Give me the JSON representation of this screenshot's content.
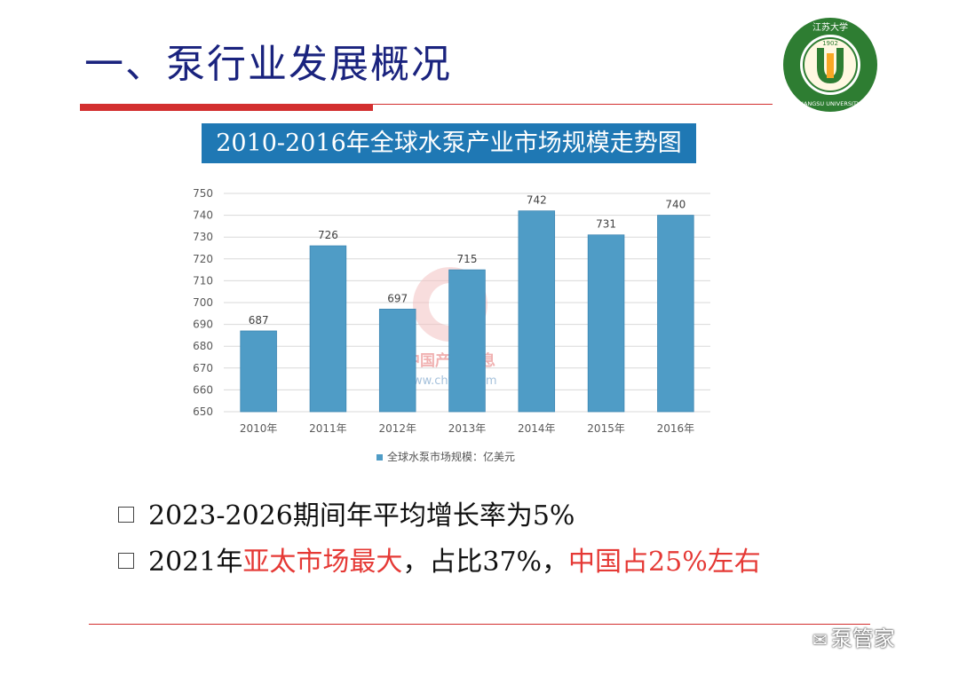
{
  "slide": {
    "title": "一、泵行业发展概况"
  },
  "logo": {
    "year": "1902",
    "top_text": "江苏大学",
    "bottom_text": "JIANGSU UNIVERSITY",
    "letter": "J",
    "colors": {
      "green": "#2e7d32",
      "gold": "#f9a825",
      "red": "#c62828"
    }
  },
  "chart_data": {
    "type": "bar",
    "title": "2010-2016年全球水泵产业市场规模走势图",
    "categories": [
      "2010年",
      "2011年",
      "2012年",
      "2013年",
      "2014年",
      "2015年",
      "2016年"
    ],
    "series": [
      {
        "name": "全球水泵市场规模：亿美元",
        "values": [
          687,
          726,
          697,
          715,
          742,
          731,
          740
        ]
      }
    ],
    "ylim": [
      650,
      750
    ],
    "yticks": [
      650,
      660,
      670,
      680,
      690,
      700,
      710,
      720,
      730,
      740,
      750
    ],
    "grid": true,
    "legend_position": "bottom",
    "bar_color": "#4f9cc6",
    "source_watermark": {
      "name": "中国产业信息",
      "url": "www.chyxx.com"
    }
  },
  "bullets": [
    {
      "parts": [
        {
          "text": "2023-2026期间年平均增长率为5%",
          "red": false
        }
      ]
    },
    {
      "parts": [
        {
          "text": "2021年",
          "red": false
        },
        {
          "text": "亚太市场最大",
          "red": true
        },
        {
          "text": "，占比37%，",
          "red": false
        },
        {
          "text": "中国占25%左右",
          "red": true
        }
      ]
    }
  ],
  "watermark": {
    "text": "泵管家",
    "icon": "wechat-icon"
  }
}
